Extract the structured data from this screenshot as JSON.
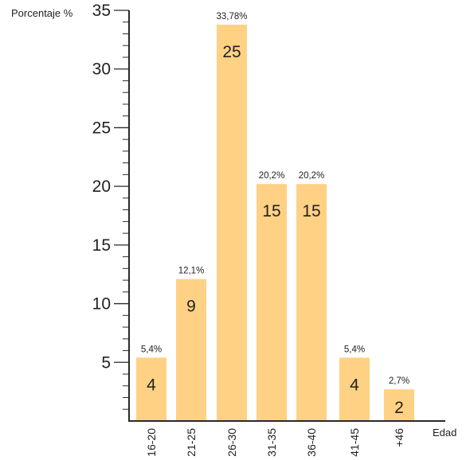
{
  "chart_data": {
    "type": "bar",
    "title": "",
    "ylabel": "Porcentaje %",
    "xlabel": "Edad",
    "categories": [
      "16-20",
      "21-25",
      "26-30",
      "31-35",
      "36-40",
      "41-45",
      "+46"
    ],
    "values": [
      5.4,
      12.1,
      33.78,
      20.2,
      20.2,
      5.4,
      2.7
    ],
    "percent_labels": [
      "5,4%",
      "12,1%",
      "33,78%",
      "20,2%",
      "20,2%",
      "5,4%",
      "2,7%"
    ],
    "counts": [
      "4",
      "9",
      "25",
      "15",
      "15",
      "4",
      "2"
    ],
    "ylim": [
      0,
      35
    ],
    "yticks": [
      "5",
      "10",
      "15",
      "20",
      "25",
      "30",
      "35"
    ],
    "bar_color": "#fed184",
    "grid": false,
    "legend": "none"
  }
}
